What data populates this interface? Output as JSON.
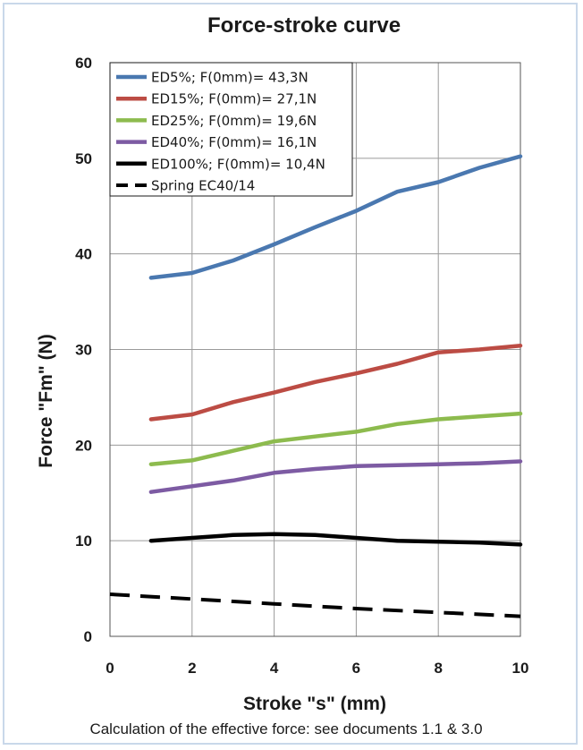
{
  "chart_data": {
    "type": "line",
    "title": "Force-stroke curve",
    "xlabel": "Stroke \"s\" (mm)",
    "ylabel": "Force \"Fm\" (N)",
    "caption": "Calculation of the effective force: see documents 1.1 & 3.0",
    "xlim": [
      0,
      10
    ],
    "ylim": [
      0,
      60
    ],
    "x_ticks": [
      "0",
      "2",
      "4",
      "6",
      "8",
      "10"
    ],
    "y_ticks": [
      "0",
      "10",
      "20",
      "30",
      "40",
      "50",
      "60"
    ],
    "grid": true,
    "legend_position": "top-left",
    "series": [
      {
        "name": "ED5%; F(0mm)= 43,3N",
        "color": "#4a78b0",
        "dash": "solid",
        "x": [
          1,
          2,
          3,
          4,
          5,
          6,
          7,
          8,
          9,
          10
        ],
        "y": [
          37.5,
          38.0,
          39.3,
          41.0,
          42.8,
          44.5,
          46.5,
          47.5,
          49.0,
          50.2
        ]
      },
      {
        "name": "ED15%; F(0mm)= 27,1N",
        "color": "#bc4c44",
        "dash": "solid",
        "x": [
          1,
          2,
          3,
          4,
          5,
          6,
          7,
          8,
          9,
          10
        ],
        "y": [
          22.7,
          23.2,
          24.5,
          25.5,
          26.6,
          27.5,
          28.5,
          29.7,
          30.0,
          30.4
        ]
      },
      {
        "name": "ED25%; F(0mm)= 19,6N",
        "color": "#8dbb4e",
        "dash": "solid",
        "x": [
          1,
          2,
          3,
          4,
          5,
          6,
          7,
          8,
          9,
          10
        ],
        "y": [
          18.0,
          18.4,
          19.4,
          20.4,
          20.9,
          21.4,
          22.2,
          22.7,
          23.0,
          23.3
        ]
      },
      {
        "name": "ED40%; F(0mm)= 16,1N",
        "color": "#7d5ba3",
        "dash": "solid",
        "x": [
          1,
          2,
          3,
          4,
          5,
          6,
          7,
          8,
          9,
          10
        ],
        "y": [
          15.1,
          15.7,
          16.3,
          17.1,
          17.5,
          17.8,
          17.9,
          18.0,
          18.1,
          18.3
        ]
      },
      {
        "name": "ED100%; F(0mm)= 10,4N",
        "color": "#000000",
        "dash": "solid",
        "x": [
          1,
          2,
          3,
          4,
          5,
          6,
          7,
          8,
          9,
          10
        ],
        "y": [
          10.0,
          10.3,
          10.6,
          10.7,
          10.6,
          10.3,
          10.0,
          9.9,
          9.8,
          9.6
        ]
      },
      {
        "name": "Spring EC40/14",
        "color": "#000000",
        "dash": "dashed",
        "x": [
          0,
          2,
          4,
          6,
          8,
          10
        ],
        "y": [
          4.4,
          3.9,
          3.4,
          2.9,
          2.5,
          2.1
        ]
      }
    ]
  }
}
